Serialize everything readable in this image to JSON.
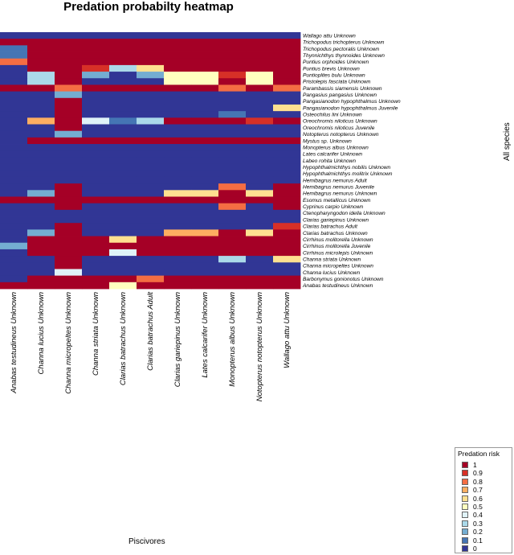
{
  "chart_data": {
    "type": "heatmap",
    "title": "Predation probabilty heatmap",
    "xlabel": "Piscivores",
    "ylabel": "All species",
    "legend": {
      "title": "Predation risk",
      "position": "bottom-right",
      "labels": [
        "1",
        "0.9",
        "0.8",
        "0.7",
        "0.6",
        "0.5",
        "0.4",
        "0.3",
        "0.2",
        "0.1",
        "0"
      ],
      "colors": [
        "#a50026",
        "#d73027",
        "#f46d43",
        "#fdae61",
        "#fee090",
        "#ffffbf",
        "#e0f3f8",
        "#abd9e9",
        "#74add1",
        "#4575b4",
        "#313695"
      ]
    },
    "columns": [
      "Anabas testudineus Unknown",
      "Channa lucius Unknown",
      "Channa micropeltes Unknown",
      "Channa striata Unknown",
      "Clarias batrachus Unknown",
      "Clarias batrachus Adult",
      "Clarias gariepinus Unknown",
      "Lates calcarifer Unknown",
      "Monopterus albus Unknown",
      "Notopterus notopterus Unknown",
      "Wallago attu Unknown"
    ],
    "rows": [
      "Wallago attu Unknown",
      "Trichopodus trichopterus Unknown",
      "Trichopodus pectoralis Unknown",
      "Thynnichthys thynnoides Unknown",
      "Puntius orphoides Unknown",
      "Puntius brevis Unknown",
      "Puntioplites bulu Unknown",
      "Pristolepis fasciata Unknown",
      "Parambassis siamensis Unknown",
      "Pangasius pangasius Unknown",
      "Pangasianodon hypophthalmus Unknown",
      "Pangasianodon hypophthalmus Juvenile",
      "Osteochilus lini Unknown",
      "Oreochromis niloticus Unknown",
      "Oreochromis niloticus Juvenile",
      "Notopterus notopterus Unknown",
      "Mystus sp. Unknown",
      "Monopterus albus Unknown",
      "Lates calcarifer Unknown",
      "Labeo rohita Unknown",
      "Hypophthalmichthys nobilis Unknown",
      "Hypophthalmichthys molitrix Unknown",
      "Hemibagrus nemurus Adult",
      "Hemibagrus nemurus Juvenile",
      "Hemibagrus nemurus Unknown",
      "Esomus metallicus Unknown",
      "Cyprinus carpio Unknown",
      "Ctenopharyngodon idella Unknown",
      "Clarias gariepinus Unknown",
      "Clarias batrachus Adult",
      "Clarias batrachus Unknown",
      "Cirrhinus molitorella Unknown",
      "Cirrhinus molitorella Juvenile",
      "Cirrhinus microlepis Unknown",
      "Channa striata Unknown",
      "Channa micropeltes Unknown",
      "Channa lucius Unknown",
      "Barbonymus gonionotus Unknown",
      "Anabas testudineus Unknown"
    ],
    "values": [
      [
        0,
        0,
        0,
        0,
        0,
        0,
        0,
        0,
        0,
        0,
        0
      ],
      [
        1,
        1,
        1,
        1,
        1,
        1,
        1,
        1,
        1,
        1,
        1
      ],
      [
        0.1,
        1,
        1,
        1,
        1,
        1,
        1,
        1,
        1,
        1,
        1
      ],
      [
        0.1,
        1,
        1,
        1,
        1,
        1,
        1,
        1,
        1,
        1,
        1
      ],
      [
        0.8,
        1,
        1,
        1,
        1,
        1,
        1,
        1,
        1,
        1,
        1
      ],
      [
        0,
        1,
        1,
        0.9,
        0.3,
        0.6,
        1,
        1,
        1,
        1,
        1
      ],
      [
        0,
        0.3,
        1,
        0.2,
        0,
        0.2,
        0.5,
        0.5,
        0.9,
        0.5,
        1
      ],
      [
        0,
        0.3,
        1,
        0,
        0,
        0,
        0.5,
        0.5,
        1,
        0.5,
        1
      ],
      [
        1,
        1,
        0.8,
        1,
        1,
        1,
        1,
        1,
        0.8,
        1,
        0.8
      ],
      [
        0,
        0,
        0.2,
        0,
        0,
        0,
        0,
        0,
        0,
        0,
        0
      ],
      [
        0,
        0,
        1,
        0,
        0,
        0,
        0,
        0,
        0,
        0,
        0
      ],
      [
        0,
        0,
        1,
        0,
        0,
        0,
        0,
        0,
        0,
        0,
        0.6
      ],
      [
        0,
        0,
        1,
        0,
        0,
        0,
        0,
        0,
        0.1,
        0,
        0
      ],
      [
        0,
        0.7,
        1,
        0.4,
        0.1,
        0.3,
        1,
        1,
        1,
        0.9,
        1
      ],
      [
        0,
        0,
        1,
        0,
        0,
        0,
        0,
        0,
        0,
        0,
        0
      ],
      [
        0,
        0,
        0.2,
        0,
        0,
        0,
        0,
        0,
        0,
        0,
        0
      ],
      [
        0,
        1,
        1,
        1,
        1,
        1,
        1,
        1,
        1,
        1,
        1
      ],
      [
        0,
        0,
        0,
        0,
        0,
        0,
        0,
        0,
        0,
        0,
        0
      ],
      [
        0,
        0,
        0,
        0,
        0,
        0,
        0,
        0,
        0,
        0,
        0
      ],
      [
        0,
        0,
        0,
        0,
        0,
        0,
        0,
        0,
        0,
        0,
        0
      ],
      [
        0,
        0,
        0,
        0,
        0,
        0,
        0,
        0,
        0,
        0,
        0
      ],
      [
        0,
        0,
        0,
        0,
        0,
        0,
        0,
        0,
        0,
        0,
        0
      ],
      [
        0,
        0,
        0,
        0,
        0,
        0,
        0,
        0,
        0,
        0,
        0
      ],
      [
        0,
        0,
        1,
        0,
        0,
        0,
        0,
        0,
        0.8,
        0,
        1
      ],
      [
        0,
        0.2,
        1,
        0,
        0,
        0,
        0.6,
        0.6,
        1,
        0.6,
        1
      ],
      [
        1,
        1,
        1,
        1,
        1,
        1,
        1,
        1,
        1,
        1,
        1
      ],
      [
        0,
        0,
        1,
        0,
        0,
        0,
        0,
        0,
        0.8,
        0,
        1
      ],
      [
        0,
        0,
        0,
        0,
        0,
        0,
        0,
        0,
        0,
        0,
        0
      ],
      [
        0,
        0,
        0,
        0,
        0,
        0,
        0,
        0,
        0,
        0,
        0
      ],
      [
        0,
        0,
        1,
        0,
        0,
        0,
        0,
        0,
        0,
        0,
        0.9
      ],
      [
        0,
        0.2,
        1,
        0,
        0,
        0,
        0.7,
        0.7,
        1,
        0.6,
        1
      ],
      [
        0,
        1,
        1,
        1,
        0.6,
        1,
        1,
        1,
        1,
        1,
        1
      ],
      [
        0.2,
        1,
        1,
        1,
        1,
        1,
        1,
        1,
        1,
        1,
        1
      ],
      [
        0,
        1,
        1,
        1,
        0.4,
        1,
        1,
        1,
        1,
        1,
        1
      ],
      [
        0,
        0,
        1,
        0,
        0,
        0,
        0,
        0,
        0.3,
        0,
        0.6
      ],
      [
        0,
        0,
        1,
        0,
        0,
        0,
        0,
        0,
        0,
        0,
        0
      ],
      [
        0,
        0,
        0.4,
        0,
        0,
        0,
        0,
        0,
        0,
        0,
        0
      ],
      [
        0,
        1,
        1,
        1,
        1,
        0.8,
        1,
        1,
        1,
        1,
        1
      ],
      [
        1,
        1,
        1,
        1,
        0.5,
        1,
        1,
        1,
        1,
        1,
        1
      ]
    ]
  }
}
